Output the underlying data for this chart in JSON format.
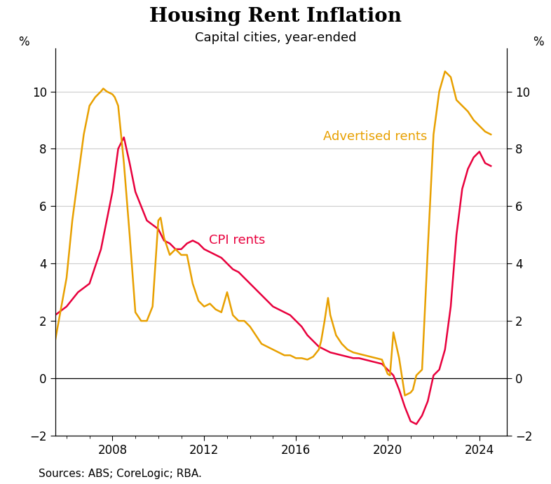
{
  "title": "Housing Rent Inflation",
  "subtitle": "Capital cities, year-ended",
  "source": "Sources: ABS; CoreLogic; RBA.",
  "ylim": [
    -2,
    11.5
  ],
  "yticks": [
    -2,
    0,
    2,
    4,
    6,
    8,
    10
  ],
  "xlim_start": 2005.5,
  "xlim_end": 2025.2,
  "xticks": [
    2008,
    2012,
    2016,
    2020,
    2024
  ],
  "cpi_color": "#e8003d",
  "adv_color": "#e8a000",
  "cpi_label": "CPI rents",
  "adv_label": "Advertised rents",
  "title_fontsize": 20,
  "subtitle_fontsize": 13,
  "label_fontsize": 13,
  "axis_fontsize": 12,
  "source_fontsize": 11,
  "cpi_data": [
    [
      2005.5,
      2.2
    ],
    [
      2006.0,
      2.5
    ],
    [
      2006.5,
      3.0
    ],
    [
      2007.0,
      3.3
    ],
    [
      2007.5,
      4.5
    ],
    [
      2008.0,
      6.5
    ],
    [
      2008.25,
      8.0
    ],
    [
      2008.5,
      8.4
    ],
    [
      2008.75,
      7.5
    ],
    [
      2009.0,
      6.5
    ],
    [
      2009.5,
      5.5
    ],
    [
      2010.0,
      5.2
    ],
    [
      2010.25,
      4.8
    ],
    [
      2010.5,
      4.7
    ],
    [
      2010.75,
      4.5
    ],
    [
      2011.0,
      4.5
    ],
    [
      2011.25,
      4.7
    ],
    [
      2011.5,
      4.8
    ],
    [
      2011.75,
      4.7
    ],
    [
      2012.0,
      4.5
    ],
    [
      2012.25,
      4.4
    ],
    [
      2012.5,
      4.3
    ],
    [
      2012.75,
      4.2
    ],
    [
      2013.0,
      4.0
    ],
    [
      2013.25,
      3.8
    ],
    [
      2013.5,
      3.7
    ],
    [
      2013.75,
      3.5
    ],
    [
      2014.0,
      3.3
    ],
    [
      2014.25,
      3.1
    ],
    [
      2014.5,
      2.9
    ],
    [
      2014.75,
      2.7
    ],
    [
      2015.0,
      2.5
    ],
    [
      2015.25,
      2.4
    ],
    [
      2015.5,
      2.3
    ],
    [
      2015.75,
      2.2
    ],
    [
      2016.0,
      2.0
    ],
    [
      2016.25,
      1.8
    ],
    [
      2016.5,
      1.5
    ],
    [
      2016.75,
      1.3
    ],
    [
      2017.0,
      1.1
    ],
    [
      2017.25,
      1.0
    ],
    [
      2017.5,
      0.9
    ],
    [
      2017.75,
      0.85
    ],
    [
      2018.0,
      0.8
    ],
    [
      2018.25,
      0.75
    ],
    [
      2018.5,
      0.7
    ],
    [
      2018.75,
      0.7
    ],
    [
      2019.0,
      0.65
    ],
    [
      2019.25,
      0.6
    ],
    [
      2019.5,
      0.55
    ],
    [
      2019.75,
      0.5
    ],
    [
      2020.0,
      0.3
    ],
    [
      2020.25,
      0.1
    ],
    [
      2020.5,
      -0.4
    ],
    [
      2020.75,
      -1.0
    ],
    [
      2021.0,
      -1.5
    ],
    [
      2021.25,
      -1.6
    ],
    [
      2021.5,
      -1.3
    ],
    [
      2021.75,
      -0.8
    ],
    [
      2022.0,
      0.1
    ],
    [
      2022.25,
      0.3
    ],
    [
      2022.5,
      1.0
    ],
    [
      2022.75,
      2.5
    ],
    [
      2023.0,
      5.0
    ],
    [
      2023.25,
      6.6
    ],
    [
      2023.5,
      7.3
    ],
    [
      2023.75,
      7.7
    ],
    [
      2024.0,
      7.9
    ],
    [
      2024.25,
      7.5
    ],
    [
      2024.5,
      7.4
    ]
  ],
  "adv_data": [
    [
      2005.5,
      1.3
    ],
    [
      2006.0,
      3.5
    ],
    [
      2006.25,
      5.5
    ],
    [
      2006.5,
      7.0
    ],
    [
      2006.75,
      8.5
    ],
    [
      2007.0,
      9.5
    ],
    [
      2007.25,
      9.8
    ],
    [
      2007.5,
      10.0
    ],
    [
      2007.6,
      10.1
    ],
    [
      2007.75,
      10.0
    ],
    [
      2008.0,
      9.9
    ],
    [
      2008.1,
      9.8
    ],
    [
      2008.25,
      9.5
    ],
    [
      2008.5,
      7.5
    ],
    [
      2008.75,
      5.0
    ],
    [
      2009.0,
      2.3
    ],
    [
      2009.25,
      2.0
    ],
    [
      2009.5,
      2.0
    ],
    [
      2009.75,
      2.5
    ],
    [
      2010.0,
      5.5
    ],
    [
      2010.1,
      5.6
    ],
    [
      2010.25,
      4.9
    ],
    [
      2010.5,
      4.3
    ],
    [
      2010.75,
      4.5
    ],
    [
      2011.0,
      4.3
    ],
    [
      2011.25,
      4.3
    ],
    [
      2011.5,
      3.3
    ],
    [
      2011.75,
      2.7
    ],
    [
      2012.0,
      2.5
    ],
    [
      2012.25,
      2.6
    ],
    [
      2012.5,
      2.4
    ],
    [
      2012.75,
      2.3
    ],
    [
      2013.0,
      3.0
    ],
    [
      2013.25,
      2.2
    ],
    [
      2013.5,
      2.0
    ],
    [
      2013.75,
      2.0
    ],
    [
      2014.0,
      1.8
    ],
    [
      2014.25,
      1.5
    ],
    [
      2014.5,
      1.2
    ],
    [
      2014.75,
      1.1
    ],
    [
      2015.0,
      1.0
    ],
    [
      2015.25,
      0.9
    ],
    [
      2015.5,
      0.8
    ],
    [
      2015.75,
      0.8
    ],
    [
      2016.0,
      0.7
    ],
    [
      2016.25,
      0.7
    ],
    [
      2016.5,
      0.65
    ],
    [
      2016.75,
      0.75
    ],
    [
      2017.0,
      1.0
    ],
    [
      2017.1,
      1.3
    ],
    [
      2017.25,
      2.0
    ],
    [
      2017.4,
      2.8
    ],
    [
      2017.5,
      2.2
    ],
    [
      2017.75,
      1.5
    ],
    [
      2018.0,
      1.2
    ],
    [
      2018.25,
      1.0
    ],
    [
      2018.5,
      0.9
    ],
    [
      2018.75,
      0.85
    ],
    [
      2019.0,
      0.8
    ],
    [
      2019.25,
      0.75
    ],
    [
      2019.5,
      0.7
    ],
    [
      2019.75,
      0.65
    ],
    [
      2020.0,
      0.15
    ],
    [
      2020.1,
      0.1
    ],
    [
      2020.25,
      1.6
    ],
    [
      2020.5,
      0.7
    ],
    [
      2020.75,
      -0.6
    ],
    [
      2021.0,
      -0.5
    ],
    [
      2021.1,
      -0.4
    ],
    [
      2021.25,
      0.1
    ],
    [
      2021.5,
      0.3
    ],
    [
      2021.75,
      4.5
    ],
    [
      2022.0,
      8.5
    ],
    [
      2022.25,
      10.0
    ],
    [
      2022.5,
      10.7
    ],
    [
      2022.75,
      10.5
    ],
    [
      2023.0,
      9.7
    ],
    [
      2023.25,
      9.5
    ],
    [
      2023.5,
      9.3
    ],
    [
      2023.75,
      9.0
    ],
    [
      2024.0,
      8.8
    ],
    [
      2024.25,
      8.6
    ],
    [
      2024.5,
      8.5
    ]
  ]
}
